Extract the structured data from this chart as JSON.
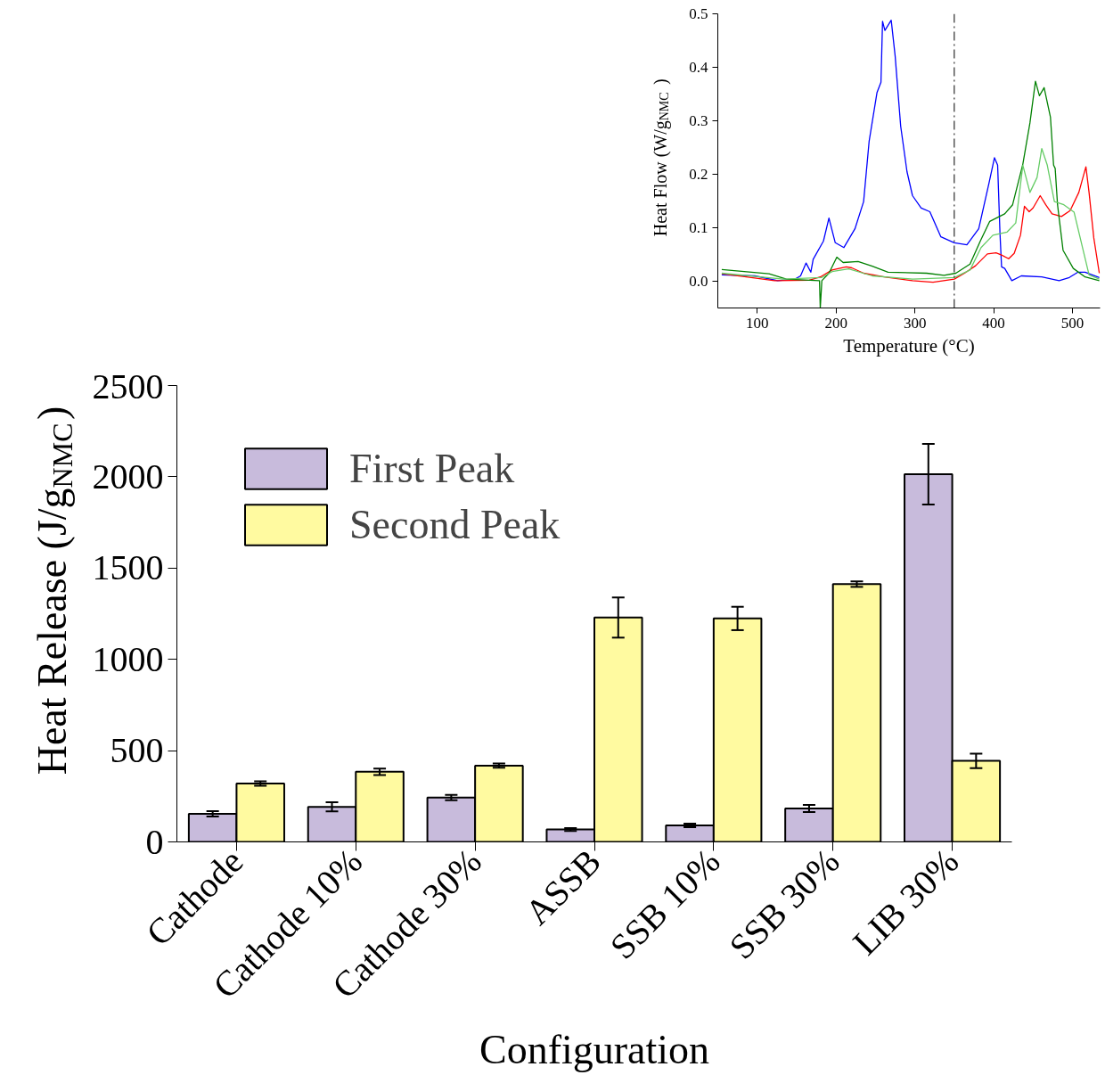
{
  "chart_data": [
    {
      "type": "line",
      "xlabel": "Temperature (°C)",
      "ylabel": "Heat Flow (W/g$_{NMC}$)",
      "xlim": [
        50,
        535
      ],
      "ylim": [
        -0.05,
        0.5
      ],
      "xticks": [
        100,
        200,
        300,
        400,
        500
      ],
      "yticks": [
        {
          "value": 0,
          "label": "0.0"
        },
        {
          "value": 0.1,
          "label": "0.1"
        },
        {
          "value": 0.2,
          "label": "0.2"
        },
        {
          "value": 0.3,
          "label": "0.3"
        },
        {
          "value": 0.4,
          "label": "0.4"
        },
        {
          "value": 0.5,
          "label": "0.5"
        }
      ],
      "ref_lines": [
        {
          "axis": "x",
          "value": 350,
          "color": "#000000",
          "line_style": "dashed"
        }
      ],
      "series": [
        {
          "color": "#0000ff",
          "x": [
            55,
            97,
            126,
            148,
            155,
            162,
            168,
            171,
            184,
            191,
            199,
            210,
            224,
            235,
            242,
            252,
            257,
            259,
            262,
            270,
            275,
            282,
            290,
            297,
            308,
            319,
            333,
            350,
            366,
            381,
            394,
            401,
            405,
            408,
            410,
            414,
            423,
            435,
            461,
            483,
            496,
            507,
            516,
            534
          ],
          "values": [
            0.012,
            0.01,
            0.001,
            0.004,
            0.01,
            0.034,
            0.017,
            0.041,
            0.075,
            0.118,
            0.072,
            0.063,
            0.098,
            0.149,
            0.262,
            0.353,
            0.372,
            0.486,
            0.469,
            0.488,
            0.421,
            0.29,
            0.205,
            0.16,
            0.137,
            0.13,
            0.083,
            0.072,
            0.068,
            0.098,
            0.183,
            0.231,
            0.217,
            0.089,
            0.027,
            0.024,
            0.001,
            0.01,
            0.008,
            0.001,
            0.007,
            0.017,
            0.017,
            0.007
          ]
        },
        {
          "color": "#ff0000",
          "x": [
            55,
            86,
            122,
            166,
            180,
            195,
            213,
            220,
            235,
            261,
            297,
            323,
            350,
            363,
            377,
            392,
            403,
            410,
            419,
            426,
            434,
            439,
            445,
            450,
            459,
            466,
            474,
            486,
            497,
            508,
            517,
            521,
            527,
            534
          ],
          "values": [
            0.014,
            0.008,
            0.001,
            0.002,
            0.008,
            0.021,
            0.027,
            0.025,
            0.015,
            0.008,
            0.001,
            -0.002,
            0.004,
            0.015,
            0.029,
            0.051,
            0.053,
            0.049,
            0.042,
            0.052,
            0.086,
            0.14,
            0.13,
            0.137,
            0.16,
            0.143,
            0.126,
            0.121,
            0.132,
            0.166,
            0.214,
            0.166,
            0.081,
            0.015
          ]
        },
        {
          "color": "#008000",
          "x": [
            55,
            115,
            137,
            179,
            180,
            182,
            191,
            201,
            209,
            228,
            246,
            266,
            315,
            337,
            352,
            370,
            383,
            395,
            414,
            424,
            437,
            446,
            453,
            458,
            464,
            472,
            476,
            478,
            481,
            488,
            501,
            516,
            534
          ],
          "values": [
            0.022,
            0.014,
            0.004,
            0.001,
            -0.05,
            0.001,
            0.015,
            0.045,
            0.035,
            0.037,
            0.028,
            0.017,
            0.015,
            0.011,
            0.015,
            0.032,
            0.075,
            0.112,
            0.126,
            0.143,
            0.219,
            0.296,
            0.374,
            0.347,
            0.362,
            0.307,
            0.217,
            0.211,
            0.143,
            0.058,
            0.024,
            0.008,
            0.001
          ]
        },
        {
          "color": "#66cc66",
          "x": [
            55,
            133,
            182,
            195,
            216,
            246,
            297,
            350,
            370,
            384,
            399,
            417,
            428,
            437,
            446,
            455,
            461,
            468,
            477,
            489,
            502,
            513,
            521,
            534
          ],
          "values": [
            0.015,
            0.004,
            0.007,
            0.018,
            0.023,
            0.01,
            0.004,
            0.007,
            0.021,
            0.063,
            0.086,
            0.092,
            0.109,
            0.217,
            0.166,
            0.194,
            0.248,
            0.217,
            0.149,
            0.143,
            0.129,
            0.061,
            0.012,
            0.004
          ]
        }
      ]
    },
    {
      "type": "bar",
      "xlabel": "Configuration",
      "ylabel": "Heat Release (J/g$_{NMC}$)",
      "categories": [
        "Cathode",
        "Cathode 10%",
        "Cathode 30%",
        "ASSB",
        "SSB 10%",
        "SSB 30%",
        "LIB 30%"
      ],
      "ylim": [
        0,
        2500
      ],
      "yticks": [
        0,
        500,
        1000,
        1500,
        2000,
        2500
      ],
      "legend": "top left",
      "series": [
        {
          "name": "First Peak",
          "color": "#c8bbdc",
          "values": [
            154,
            192,
            243,
            68,
            90,
            183,
            2014
          ],
          "errors": [
            15,
            25,
            15,
            8,
            10,
            20,
            166
          ]
        },
        {
          "name": "Second Peak",
          "color": "#fffaa0",
          "values": [
            320,
            384,
            418,
            1229,
            1224,
            1412,
            444
          ],
          "errors": [
            12,
            18,
            12,
            110,
            64,
            15,
            40
          ]
        }
      ]
    }
  ]
}
